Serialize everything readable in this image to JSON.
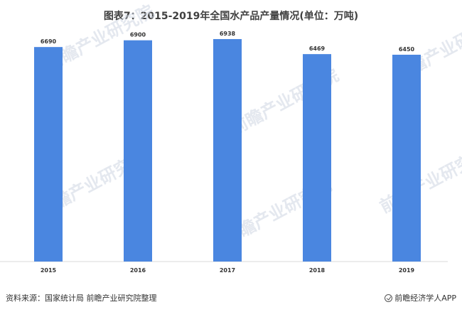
{
  "title": "图表7：2015-2019年全国水产品产量情况(单位：万吨)",
  "watermark": "前瞻产业研究院",
  "footer": {
    "source": "资料来源：国家统计局 前瞻产业研究院整理",
    "brand": "前瞻经济学人APP"
  },
  "colors": {
    "bar": "#4a86e0"
  },
  "chart_data": {
    "type": "bar",
    "title": "图表7：2015-2019年全国水产品产量情况(单位：万吨)",
    "categories": [
      "2015",
      "2016",
      "2017",
      "2018",
      "2019"
    ],
    "values": [
      6690,
      6900,
      6938,
      6469,
      6450
    ],
    "data_labels": [
      "6690",
      "6900",
      "6938",
      "6469",
      "6450"
    ],
    "ylim": [
      0,
      7270
    ],
    "grid": false,
    "legend": "none"
  }
}
